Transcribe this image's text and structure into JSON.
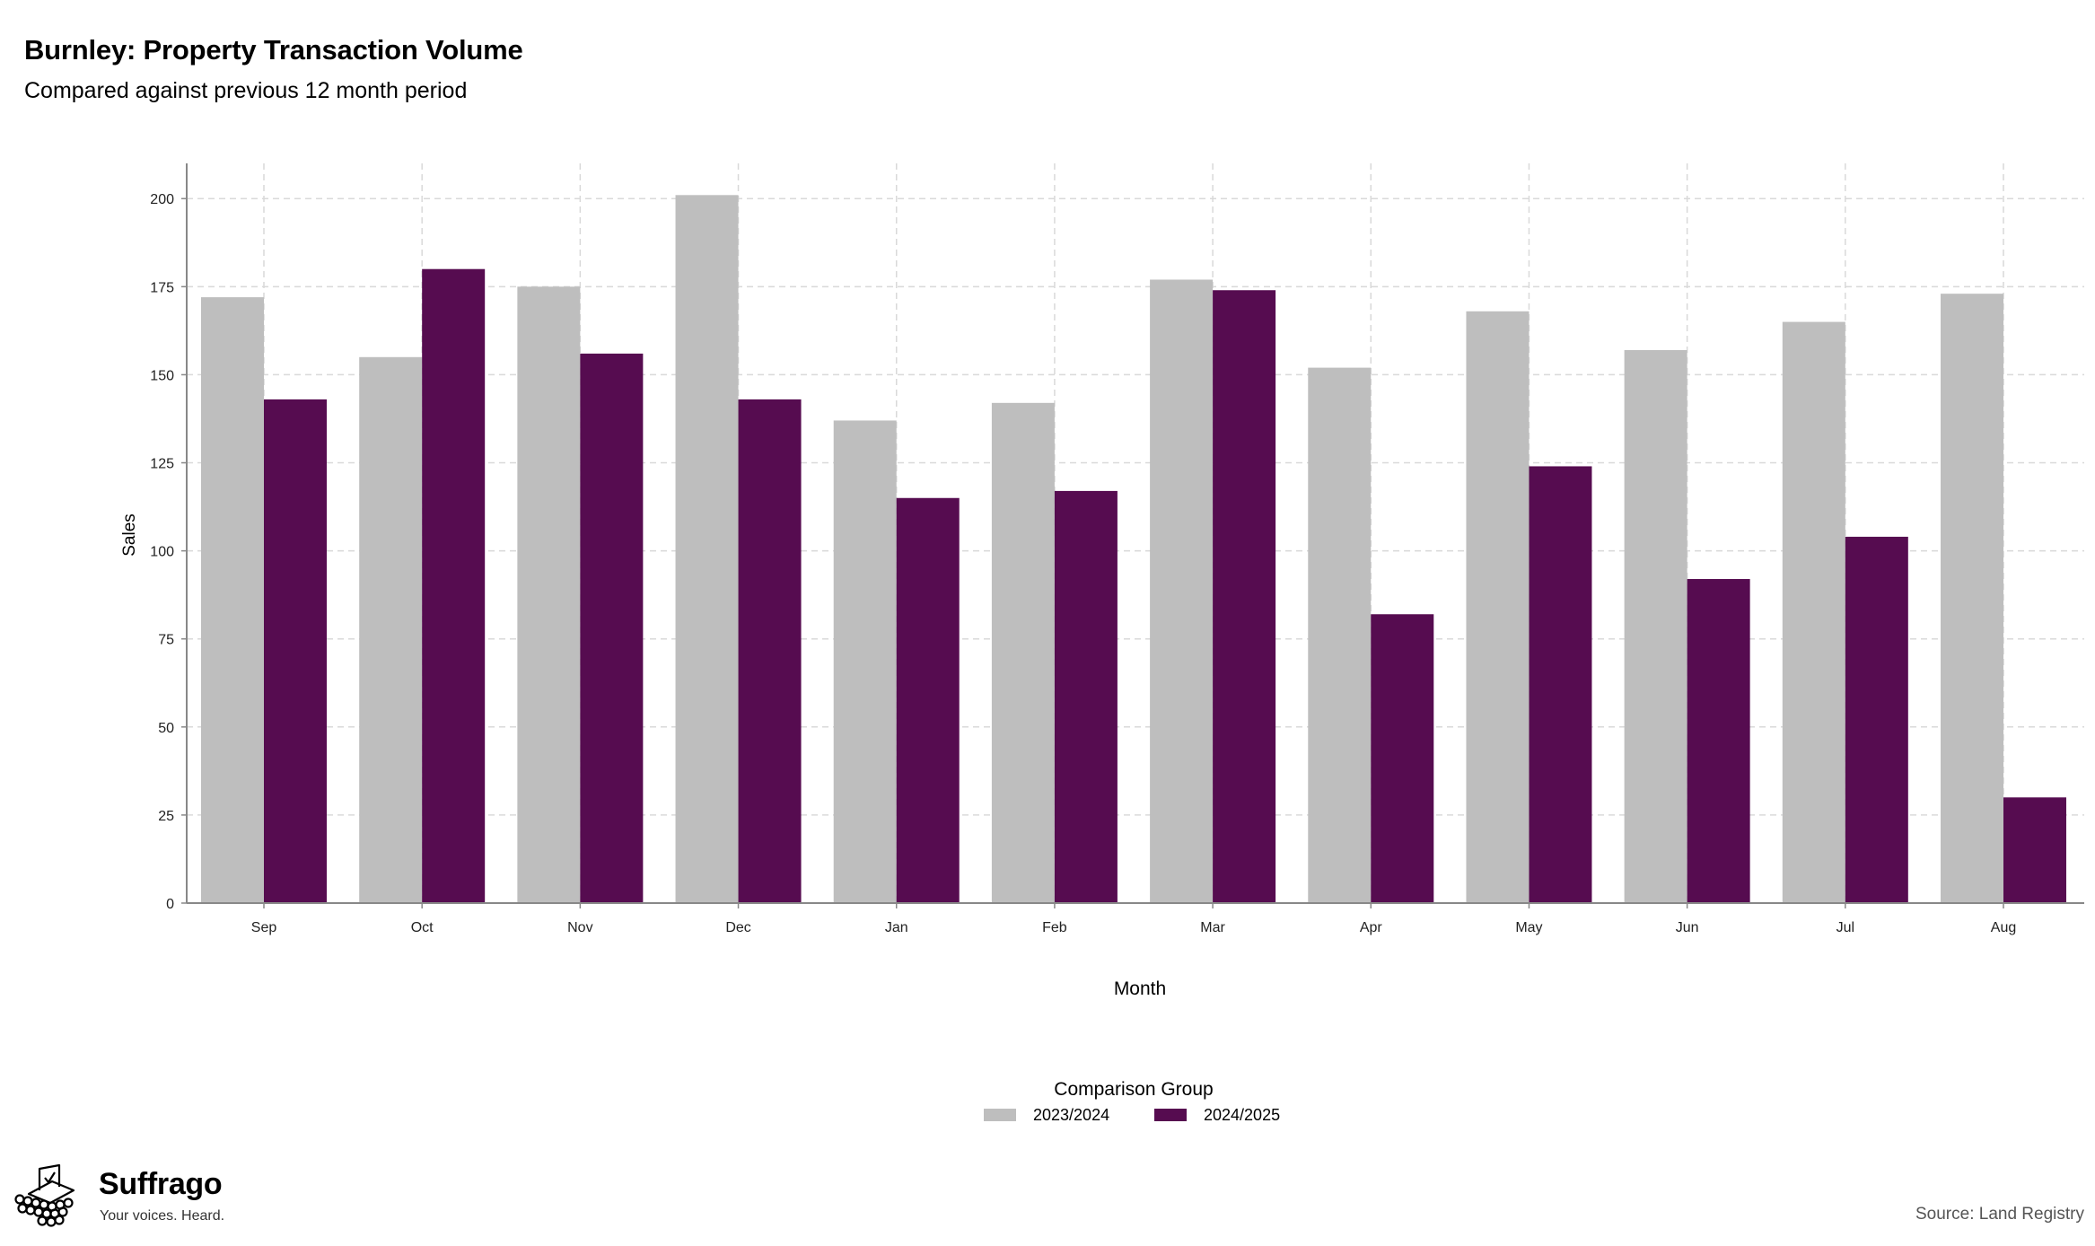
{
  "title": "Burnley: Property Transaction Volume",
  "subtitle": "Compared against previous 12 month period",
  "source": "Source: Land Registry",
  "branding": {
    "name": "Suffrago",
    "tagline": "Your voices. Heard."
  },
  "colors": {
    "series_prev": "#bebebe",
    "series_curr": "#560c50",
    "grid": "#d9d9d9",
    "axis": "#888888"
  },
  "chart_data": {
    "type": "bar",
    "xlabel": "Month",
    "ylabel": "Sales",
    "ylim": [
      0,
      210
    ],
    "yticks": [
      0,
      25,
      50,
      75,
      100,
      125,
      150,
      175,
      200
    ],
    "grid": true,
    "legend_title": "Comparison Group",
    "legend_position": "bottom",
    "categories": [
      "Sep",
      "Oct",
      "Nov",
      "Dec",
      "Jan",
      "Feb",
      "Mar",
      "Apr",
      "May",
      "Jun",
      "Jul",
      "Aug"
    ],
    "series": [
      {
        "name": "2023/2024",
        "color": "#bebebe",
        "values": [
          172,
          155,
          175,
          201,
          137,
          142,
          177,
          152,
          168,
          157,
          165,
          173
        ]
      },
      {
        "name": "2024/2025",
        "color": "#560c50",
        "values": [
          143,
          180,
          156,
          143,
          115,
          117,
          174,
          82,
          124,
          92,
          104,
          30
        ]
      }
    ]
  }
}
